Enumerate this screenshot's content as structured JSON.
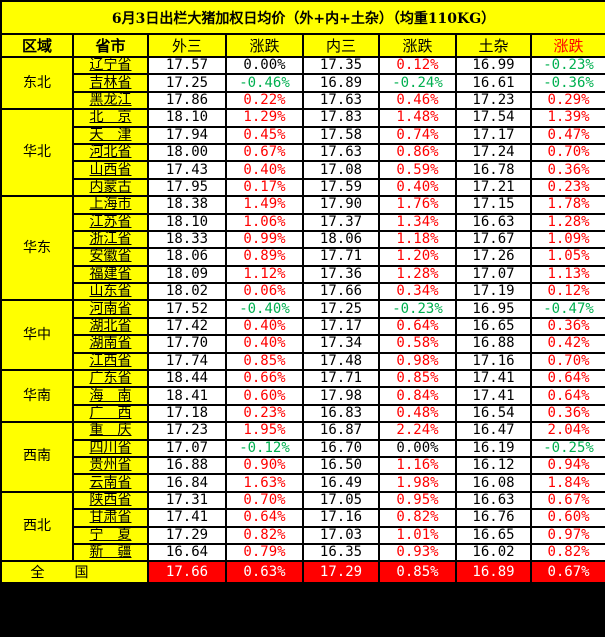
{
  "title": "6月3日出栏大猪加权日均价（外+内+土杂）（均重110KG）",
  "headers": [
    "区域",
    "省市",
    "外三",
    "涨跌",
    "内三",
    "涨跌",
    "土杂",
    "涨跌"
  ],
  "colors": {
    "header_bg": "#ffff00",
    "up": "#ff0000",
    "down": "#00b050",
    "total_bg": "#ff0000"
  },
  "regions": [
    {
      "name": "东北",
      "rows": [
        [
          "辽宁省",
          "17.57",
          "0.00%",
          "17.35",
          "0.12%",
          "16.99",
          "-0.23%"
        ],
        [
          "吉林省",
          "17.25",
          "-0.46%",
          "16.89",
          "-0.24%",
          "16.61",
          "-0.36%"
        ],
        [
          "黑龙江",
          "17.86",
          "0.22%",
          "17.63",
          "0.46%",
          "17.23",
          "0.29%"
        ]
      ]
    },
    {
      "name": "华北",
      "rows": [
        [
          "北　京",
          "18.10",
          "1.29%",
          "17.83",
          "1.48%",
          "17.54",
          "1.39%"
        ],
        [
          "天　津",
          "17.94",
          "0.45%",
          "17.58",
          "0.74%",
          "17.17",
          "0.47%"
        ],
        [
          "河北省",
          "18.00",
          "0.67%",
          "17.63",
          "0.86%",
          "17.24",
          "0.70%"
        ],
        [
          "山西省",
          "17.43",
          "0.40%",
          "17.08",
          "0.59%",
          "16.78",
          "0.36%"
        ],
        [
          "内蒙古",
          "17.95",
          "0.17%",
          "17.59",
          "0.40%",
          "17.21",
          "0.23%"
        ]
      ]
    },
    {
      "name": "华东",
      "rows": [
        [
          "上海市",
          "18.38",
          "1.49%",
          "17.90",
          "1.76%",
          "17.15",
          "1.78%"
        ],
        [
          "江苏省",
          "18.10",
          "1.06%",
          "17.37",
          "1.34%",
          "16.63",
          "1.28%"
        ],
        [
          "浙江省",
          "18.33",
          "0.99%",
          "18.06",
          "1.18%",
          "17.67",
          "1.09%"
        ],
        [
          "安徽省",
          "18.06",
          "0.89%",
          "17.71",
          "1.20%",
          "17.26",
          "1.05%"
        ],
        [
          "福建省",
          "18.09",
          "1.12%",
          "17.36",
          "1.28%",
          "17.07",
          "1.13%"
        ],
        [
          "山东省",
          "18.02",
          "0.06%",
          "17.66",
          "0.34%",
          "17.19",
          "0.12%"
        ]
      ]
    },
    {
      "name": "华中",
      "rows": [
        [
          "河南省",
          "17.52",
          "-0.40%",
          "17.25",
          "-0.23%",
          "16.95",
          "-0.47%"
        ],
        [
          "湖北省",
          "17.42",
          "0.40%",
          "17.17",
          "0.64%",
          "16.65",
          "0.36%"
        ],
        [
          "湖南省",
          "17.70",
          "0.40%",
          "17.34",
          "0.58%",
          "16.88",
          "0.42%"
        ],
        [
          "江西省",
          "17.74",
          "0.85%",
          "17.48",
          "0.98%",
          "17.16",
          "0.70%"
        ]
      ]
    },
    {
      "name": "华南",
      "rows": [
        [
          "广东省",
          "18.44",
          "0.66%",
          "17.71",
          "0.85%",
          "17.41",
          "0.64%"
        ],
        [
          "海　南",
          "18.41",
          "0.60%",
          "17.98",
          "0.84%",
          "17.41",
          "0.64%"
        ],
        [
          "广　西",
          "17.18",
          "0.23%",
          "16.83",
          "0.48%",
          "16.54",
          "0.36%"
        ]
      ]
    },
    {
      "name": "西南",
      "rows": [
        [
          "重　庆",
          "17.23",
          "1.95%",
          "16.87",
          "2.24%",
          "16.47",
          "2.04%"
        ],
        [
          "四川省",
          "17.07",
          "-0.12%",
          "16.70",
          "0.00%",
          "16.19",
          "-0.25%"
        ],
        [
          "贵州省",
          "16.88",
          "0.90%",
          "16.50",
          "1.16%",
          "16.12",
          "0.94%"
        ],
        [
          "云南省",
          "16.84",
          "1.63%",
          "16.49",
          "1.98%",
          "16.08",
          "1.84%"
        ]
      ]
    },
    {
      "name": "西北",
      "rows": [
        [
          "陕西省",
          "17.31",
          "0.70%",
          "17.05",
          "0.95%",
          "16.63",
          "0.67%"
        ],
        [
          "甘肃省",
          "17.41",
          "0.64%",
          "17.16",
          "0.82%",
          "16.76",
          "0.60%"
        ],
        [
          "宁　夏",
          "17.29",
          "0.82%",
          "17.03",
          "1.01%",
          "16.65",
          "0.97%"
        ],
        [
          "新　疆",
          "16.64",
          "0.79%",
          "16.35",
          "0.93%",
          "16.02",
          "0.82%"
        ]
      ]
    }
  ],
  "total": {
    "label": "全国",
    "values": [
      "17.66",
      "0.63%",
      "17.29",
      "0.85%",
      "16.89",
      "0.67%"
    ]
  }
}
